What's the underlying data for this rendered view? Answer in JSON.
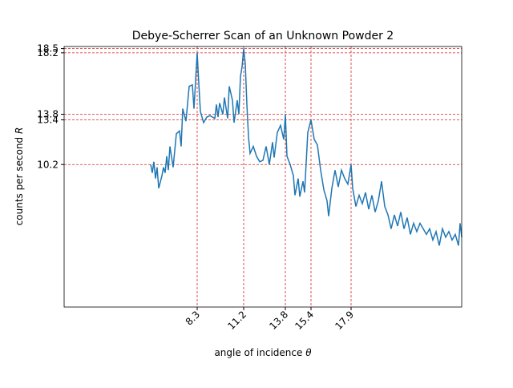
{
  "chart_data": {
    "type": "line",
    "title": "Debye-Scherrer Scan of an Unknown Powder 2",
    "xlabel": "angle of incidence",
    "xlabel_symbol": "θ",
    "ylabel": "counts per second",
    "ylabel_symbol": "R",
    "color": "#1f77b4",
    "grid": true,
    "grid_color": "#d62728",
    "xlim": [
      0,
      24.8
    ],
    "ylim": [
      0,
      18.65
    ],
    "xticks": [
      8.3,
      11.2,
      13.8,
      15.4,
      17.9
    ],
    "yticks": [
      18.5,
      18.2,
      13.8,
      13.4,
      10.2
    ],
    "x": [
      5.4,
      5.5,
      5.6,
      5.7,
      5.8,
      5.9,
      6.1,
      6.2,
      6.3,
      6.4,
      6.5,
      6.6,
      6.8,
      7.0,
      7.2,
      7.3,
      7.4,
      7.6,
      7.8,
      8.0,
      8.1,
      8.3,
      8.4,
      8.5,
      8.7,
      8.9,
      9.1,
      9.4,
      9.5,
      9.6,
      9.7,
      9.9,
      10.0,
      10.2,
      10.3,
      10.5,
      10.6,
      10.8,
      10.9,
      11.0,
      11.1,
      11.2,
      11.3,
      11.4,
      11.5,
      11.6,
      11.8,
      12.0,
      12.2,
      12.4,
      12.6,
      12.8,
      13.0,
      13.1,
      13.3,
      13.5,
      13.7,
      13.8,
      13.9,
      14.1,
      14.3,
      14.4,
      14.6,
      14.7,
      14.9,
      15.0,
      15.2,
      15.4,
      15.6,
      15.8,
      16.0,
      16.2,
      16.4,
      16.5,
      16.7,
      16.9,
      17.1,
      17.3,
      17.5,
      17.7,
      17.9,
      18.0,
      18.2,
      18.4,
      18.6,
      18.8,
      19.0,
      19.2,
      19.4,
      19.6,
      19.8,
      20.0,
      20.2,
      20.4,
      20.6,
      20.8,
      21.0,
      21.2,
      21.4,
      21.6,
      21.8,
      22.0,
      22.2,
      22.4,
      22.6,
      22.8,
      23.0,
      23.2,
      23.4,
      23.6,
      23.8,
      24.0,
      24.2,
      24.4,
      24.6,
      24.7,
      24.8
    ],
    "values": [
      10.2,
      9.6,
      10.4,
      9.2,
      10.0,
      8.5,
      9.4,
      10.0,
      9.6,
      10.8,
      9.8,
      11.5,
      10.0,
      12.4,
      12.6,
      11.5,
      14.2,
      13.3,
      15.8,
      15.9,
      14.2,
      18.2,
      16.0,
      14.0,
      13.2,
      13.6,
      13.7,
      13.5,
      14.5,
      13.6,
      14.6,
      13.8,
      15.0,
      13.5,
      15.8,
      14.8,
      13.2,
      14.8,
      13.8,
      16.5,
      17.2,
      18.5,
      17.4,
      14.5,
      12.2,
      11.0,
      11.5,
      10.8,
      10.4,
      10.5,
      11.5,
      10.2,
      11.8,
      10.7,
      12.5,
      13.0,
      12.0,
      13.8,
      10.8,
      10.2,
      9.4,
      8.0,
      9.2,
      7.9,
      9.0,
      8.2,
      12.5,
      13.4,
      12.0,
      11.6,
      9.8,
      8.4,
      7.6,
      6.5,
      8.5,
      9.8,
      8.6,
      9.8,
      9.2,
      8.8,
      10.2,
      8.5,
      7.2,
      8.0,
      7.4,
      8.2,
      7.0,
      8.0,
      6.8,
      7.6,
      9.0,
      7.2,
      6.6,
      5.6,
      6.6,
      5.8,
      6.8,
      5.6,
      6.4,
      5.2,
      6.0,
      5.4,
      6.0,
      5.6,
      5.2,
      5.6,
      4.8,
      5.4,
      4.4,
      5.6,
      5.0,
      5.4,
      4.8,
      5.2,
      4.4,
      6.0,
      5.0
    ]
  }
}
